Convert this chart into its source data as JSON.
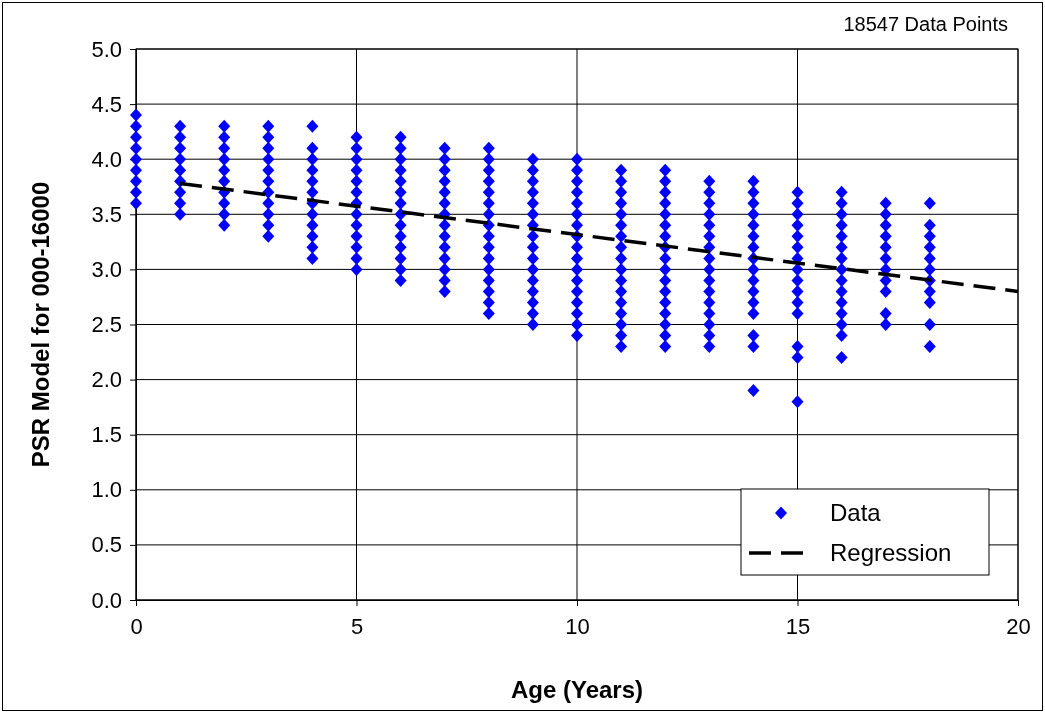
{
  "chart_data": {
    "type": "scatter",
    "xlabel": "Age (Years)",
    "ylabel": "PSR Model for 000-16000",
    "annotations": [
      "18547 Data Points"
    ],
    "xlim": [
      0,
      20
    ],
    "xticks": [
      0,
      5,
      10,
      15,
      20
    ],
    "ylim": [
      0,
      5
    ],
    "yticks": [
      {
        "value": 0,
        "label": "0.0"
      },
      0.5,
      {
        "value": 1,
        "label": "1.0"
      },
      1.5,
      {
        "value": 2,
        "label": "2.0"
      },
      2.5,
      {
        "value": 3,
        "label": "3.0"
      },
      3.5,
      {
        "value": 4,
        "label": "4.0"
      },
      4.5,
      {
        "value": 5,
        "label": "5.0"
      }
    ],
    "grid": true,
    "legend": "bottom right",
    "series": [
      {
        "name": "Data",
        "marker": "diamond",
        "color": "#0000ff",
        "x": [
          0,
          0,
          0,
          0,
          0,
          0,
          0,
          0,
          0,
          1,
          1,
          1,
          1,
          1,
          1,
          1,
          1,
          1,
          2,
          2,
          2,
          2,
          2,
          2,
          2,
          2,
          2,
          2,
          3,
          3,
          3,
          3,
          3,
          3,
          3,
          3,
          3,
          3,
          3,
          4,
          4,
          4,
          4,
          4,
          4,
          4,
          4,
          4,
          4,
          4,
          4,
          5,
          5,
          5,
          5,
          5,
          5,
          5,
          5,
          5,
          5,
          5,
          5,
          5,
          6,
          6,
          6,
          6,
          6,
          6,
          6,
          6,
          6,
          6,
          6,
          6,
          6,
          6,
          7,
          7,
          7,
          7,
          7,
          7,
          7,
          7,
          7,
          7,
          7,
          7,
          7,
          7,
          8,
          8,
          8,
          8,
          8,
          8,
          8,
          8,
          8,
          8,
          8,
          8,
          8,
          8,
          8,
          8,
          9,
          9,
          9,
          9,
          9,
          9,
          9,
          9,
          9,
          9,
          9,
          9,
          9,
          9,
          9,
          9,
          10,
          10,
          10,
          10,
          10,
          10,
          10,
          10,
          10,
          10,
          10,
          10,
          10,
          10,
          10,
          10,
          10,
          11,
          11,
          11,
          11,
          11,
          11,
          11,
          11,
          11,
          11,
          11,
          11,
          11,
          11,
          11,
          11,
          11,
          12,
          12,
          12,
          12,
          12,
          12,
          12,
          12,
          12,
          12,
          12,
          12,
          12,
          12,
          12,
          12,
          12,
          13,
          13,
          13,
          13,
          13,
          13,
          13,
          13,
          13,
          13,
          13,
          13,
          13,
          13,
          13,
          13,
          14,
          14,
          14,
          14,
          14,
          14,
          14,
          14,
          14,
          14,
          14,
          14,
          14,
          14,
          14,
          14,
          15,
          15,
          15,
          15,
          15,
          15,
          15,
          15,
          15,
          15,
          15,
          15,
          15,
          15,
          15,
          16,
          16,
          16,
          16,
          16,
          16,
          16,
          16,
          16,
          16,
          16,
          16,
          16,
          16,
          16,
          17,
          17,
          17,
          17,
          17,
          17,
          17,
          17,
          17,
          17,
          17,
          18,
          18,
          18,
          18,
          18,
          18,
          18,
          18,
          18,
          18,
          18
        ],
        "values": [
          3.6,
          3.7,
          3.8,
          3.9,
          4.0,
          4.1,
          4.2,
          4.3,
          4.4,
          3.5,
          3.6,
          3.7,
          3.8,
          3.9,
          4.0,
          4.1,
          4.2,
          4.3,
          3.4,
          3.5,
          3.6,
          3.7,
          3.8,
          3.9,
          4.0,
          4.1,
          4.2,
          4.3,
          3.3,
          3.4,
          3.5,
          3.6,
          3.7,
          3.8,
          3.9,
          4.0,
          4.1,
          4.2,
          4.3,
          3.1,
          3.2,
          3.3,
          3.4,
          3.5,
          3.6,
          3.7,
          3.8,
          3.9,
          4.0,
          4.1,
          4.3,
          3.0,
          3.1,
          3.2,
          3.3,
          3.4,
          3.5,
          3.6,
          3.7,
          3.8,
          3.9,
          4.0,
          4.1,
          4.2,
          2.9,
          3.0,
          3.1,
          3.2,
          3.3,
          3.4,
          3.5,
          3.6,
          3.7,
          3.8,
          3.9,
          4.0,
          4.1,
          4.2,
          2.8,
          2.9,
          3.0,
          3.1,
          3.2,
          3.3,
          3.4,
          3.5,
          3.6,
          3.7,
          3.8,
          3.9,
          4.0,
          4.1,
          2.6,
          2.7,
          2.8,
          2.9,
          3.0,
          3.1,
          3.2,
          3.3,
          3.4,
          3.5,
          3.6,
          3.7,
          3.8,
          3.9,
          4.0,
          4.1,
          2.5,
          2.6,
          2.7,
          2.8,
          2.9,
          3.0,
          3.1,
          3.2,
          3.3,
          3.4,
          3.5,
          3.6,
          3.7,
          3.8,
          3.9,
          4.0,
          2.4,
          2.5,
          2.6,
          2.7,
          2.8,
          2.9,
          3.0,
          3.1,
          3.2,
          3.3,
          3.4,
          3.5,
          3.6,
          3.7,
          3.8,
          3.9,
          4.0,
          2.3,
          2.4,
          2.5,
          2.6,
          2.7,
          2.8,
          2.9,
          3.0,
          3.1,
          3.2,
          3.3,
          3.4,
          3.5,
          3.6,
          3.7,
          3.8,
          3.9,
          2.3,
          2.4,
          2.5,
          2.6,
          2.7,
          2.8,
          2.9,
          3.0,
          3.1,
          3.2,
          3.3,
          3.4,
          3.5,
          3.6,
          3.7,
          3.8,
          3.9,
          2.3,
          2.4,
          2.5,
          2.6,
          2.7,
          2.8,
          2.9,
          3.0,
          3.1,
          3.2,
          3.3,
          3.4,
          3.5,
          3.6,
          3.7,
          3.8,
          1.9,
          2.3,
          2.4,
          2.6,
          2.7,
          2.8,
          2.9,
          3.0,
          3.1,
          3.2,
          3.3,
          3.4,
          3.5,
          3.6,
          3.7,
          3.8,
          1.8,
          2.2,
          2.3,
          2.6,
          2.7,
          2.8,
          2.9,
          3.0,
          3.1,
          3.2,
          3.3,
          3.4,
          3.5,
          3.6,
          3.7,
          2.2,
          2.4,
          2.5,
          2.6,
          2.7,
          2.8,
          2.9,
          3.0,
          3.1,
          3.2,
          3.3,
          3.4,
          3.5,
          3.6,
          3.7,
          2.5,
          2.6,
          2.8,
          2.9,
          3.0,
          3.1,
          3.2,
          3.3,
          3.4,
          3.5,
          3.6,
          2.3,
          2.5,
          2.7,
          2.8,
          2.9,
          3.0,
          3.1,
          3.2,
          3.3,
          3.4,
          3.6
        ]
      },
      {
        "name": "Regression",
        "type": "line",
        "line_style": "dashed",
        "color": "#000000",
        "x": [
          1,
          20
        ],
        "values": [
          3.78,
          2.8
        ]
      }
    ]
  }
}
